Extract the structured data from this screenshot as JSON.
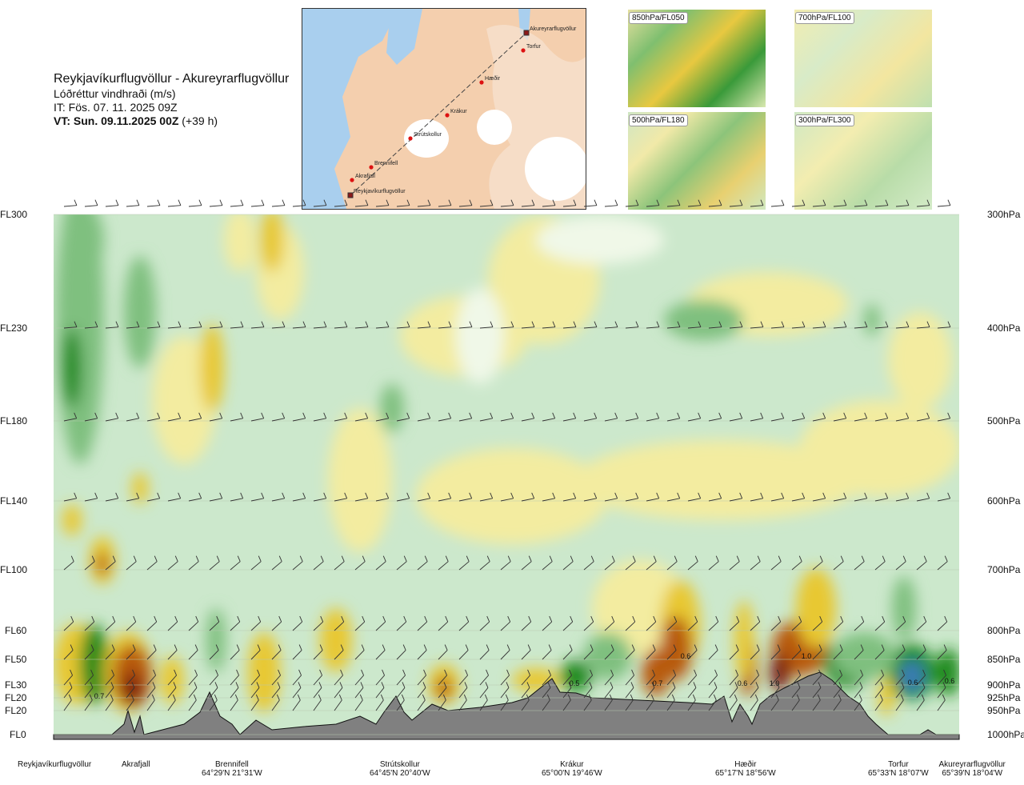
{
  "header": {
    "route": "Reykjavíkurflugvöllur - Akureyrarflugvöllur",
    "quantity": "Lóðréttur vindhraði (m/s)",
    "issue_time": "IT: Fös. 07. 11. 2025 09Z",
    "valid_prefix": "VT: Sun. 09.11.2025 00Z",
    "valid_suffix": " (+39 h)"
  },
  "map": {
    "points": [
      {
        "name": "Akureyrarflugvöllur"
      },
      {
        "name": "Torfur"
      },
      {
        "name": "Hæðir"
      },
      {
        "name": "Krákur"
      },
      {
        "name": "Strútskollur"
      },
      {
        "name": "Brennifell"
      },
      {
        "name": "Akrafjall"
      },
      {
        "name": "Reykjavíkurflugvöllur"
      }
    ]
  },
  "insets": [
    {
      "label": "850hPa/FL050"
    },
    {
      "label": "700hPa/FL100"
    },
    {
      "label": "500hPa/FL180"
    },
    {
      "label": "300hPa/FL300"
    }
  ],
  "chart_data": {
    "type": "heatmap",
    "title": "Lóðréttur vindhraði (m/s)",
    "levels": [
      {
        "fl": "FL300",
        "hpa": "300hPa"
      },
      {
        "fl": "FL230",
        "hpa": "400hPa"
      },
      {
        "fl": "FL180",
        "hpa": "500hPa"
      },
      {
        "fl": "FL140",
        "hpa": "600hPa"
      },
      {
        "fl": "FL100",
        "hpa": "700hPa"
      },
      {
        "fl": "FL60",
        "hpa": "800hPa"
      },
      {
        "fl": "FL50",
        "hpa": "850hPa"
      },
      {
        "fl": "FL30",
        "hpa": "900hPa"
      },
      {
        "fl": "FL20",
        "hpa": "925hPa"
      },
      {
        "fl": "FL20",
        "hpa": "950hPa"
      },
      {
        "fl": "FL0",
        "hpa": "1000hPa"
      }
    ],
    "stations": [
      {
        "name": "Reykjavíkurflugvöllur",
        "coord": ""
      },
      {
        "name": "Akrafjall",
        "coord": ""
      },
      {
        "name": "Brennifell",
        "coord": "64°29'N 21°31'W"
      },
      {
        "name": "Strútskollur",
        "coord": "64°45'N 20°40'W"
      },
      {
        "name": "Krákur",
        "coord": "65°00'N 19°46'W"
      },
      {
        "name": "Hæðir",
        "coord": "65°17'N 18°56'W"
      },
      {
        "name": "Torfur",
        "coord": "65°33'N 18°07'W"
      },
      {
        "name": "Akureyrarflugvöllur",
        "coord": "65°39'N 18°04'W"
      }
    ],
    "value_labels": [
      "0.7",
      "0.5",
      "0.6",
      "0.7",
      "1.0",
      "0.6",
      "0.6",
      "1.0",
      "0.6"
    ],
    "colors": {
      "strong_down": "#1f8a1f",
      "mid_down": "#7fc07f",
      "weak_down": "#cce8cc",
      "neutral": "#f0f8e8",
      "weak_up": "#f3eca0",
      "mid_up": "#e8c830",
      "strong_up": "#b85a10",
      "max_up": "#7a1a08",
      "max_down": "#3a7ab8",
      "terrain": "#808080"
    }
  }
}
